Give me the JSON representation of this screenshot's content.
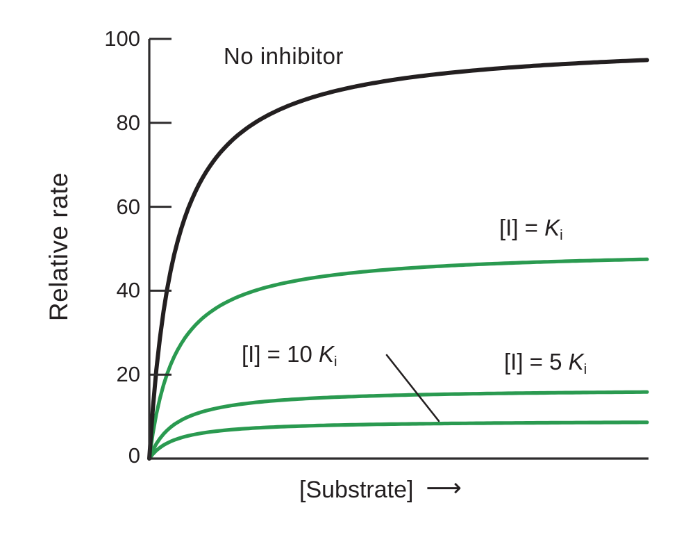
{
  "figure": {
    "background": "#ffffff",
    "ink_color": "#231f20",
    "axis_color": "#2e2c2d",
    "green_color": "#2a9a50"
  },
  "chart_data": {
    "type": "line",
    "title": "",
    "xlabel": "[Substrate]",
    "ylabel": "Relative rate",
    "x_axis_qualitative": true,
    "x_axis_arrow": true,
    "ylim": [
      0,
      100
    ],
    "yticks": [
      100,
      80,
      60,
      40,
      20,
      0
    ],
    "grid": false,
    "legend": "inline-labels",
    "model": "michaelis_menten",
    "km_fraction_of_x_range": 0.053,
    "series": [
      {
        "name": "No inhibitor",
        "color": "#231f20",
        "plateau": 100,
        "value_at_right_edge": 95
      },
      {
        "name": "[I] = Ki",
        "color": "#2a9a50",
        "plateau": 50,
        "value_at_right_edge": 48
      },
      {
        "name": "[I] = 5 Ki",
        "color": "#2a9a50",
        "plateau": 16.7,
        "value_at_right_edge": 15.9
      },
      {
        "name": "[I] = 10 Ki",
        "color": "#2a9a50",
        "plateau": 9.1,
        "value_at_right_edge": 8.6
      }
    ],
    "annotations": [
      {
        "type": "leader-line",
        "from_label": "[I] = 10 Ki",
        "points_to_series": "[I] = 10 Ki"
      }
    ]
  },
  "labels": {
    "no_inhibitor": "No inhibitor",
    "ki": {
      "prefix": "[I] = ",
      "k": "K",
      "sub": "i"
    },
    "ki10": {
      "prefix": "[I] = 10 ",
      "k": "K",
      "sub": "i"
    },
    "ki5": {
      "prefix": "[I] = 5 ",
      "k": "K",
      "sub": "i"
    },
    "substrate": "[Substrate]",
    "arrow": "⟶",
    "relative_rate": "Relative rate"
  }
}
